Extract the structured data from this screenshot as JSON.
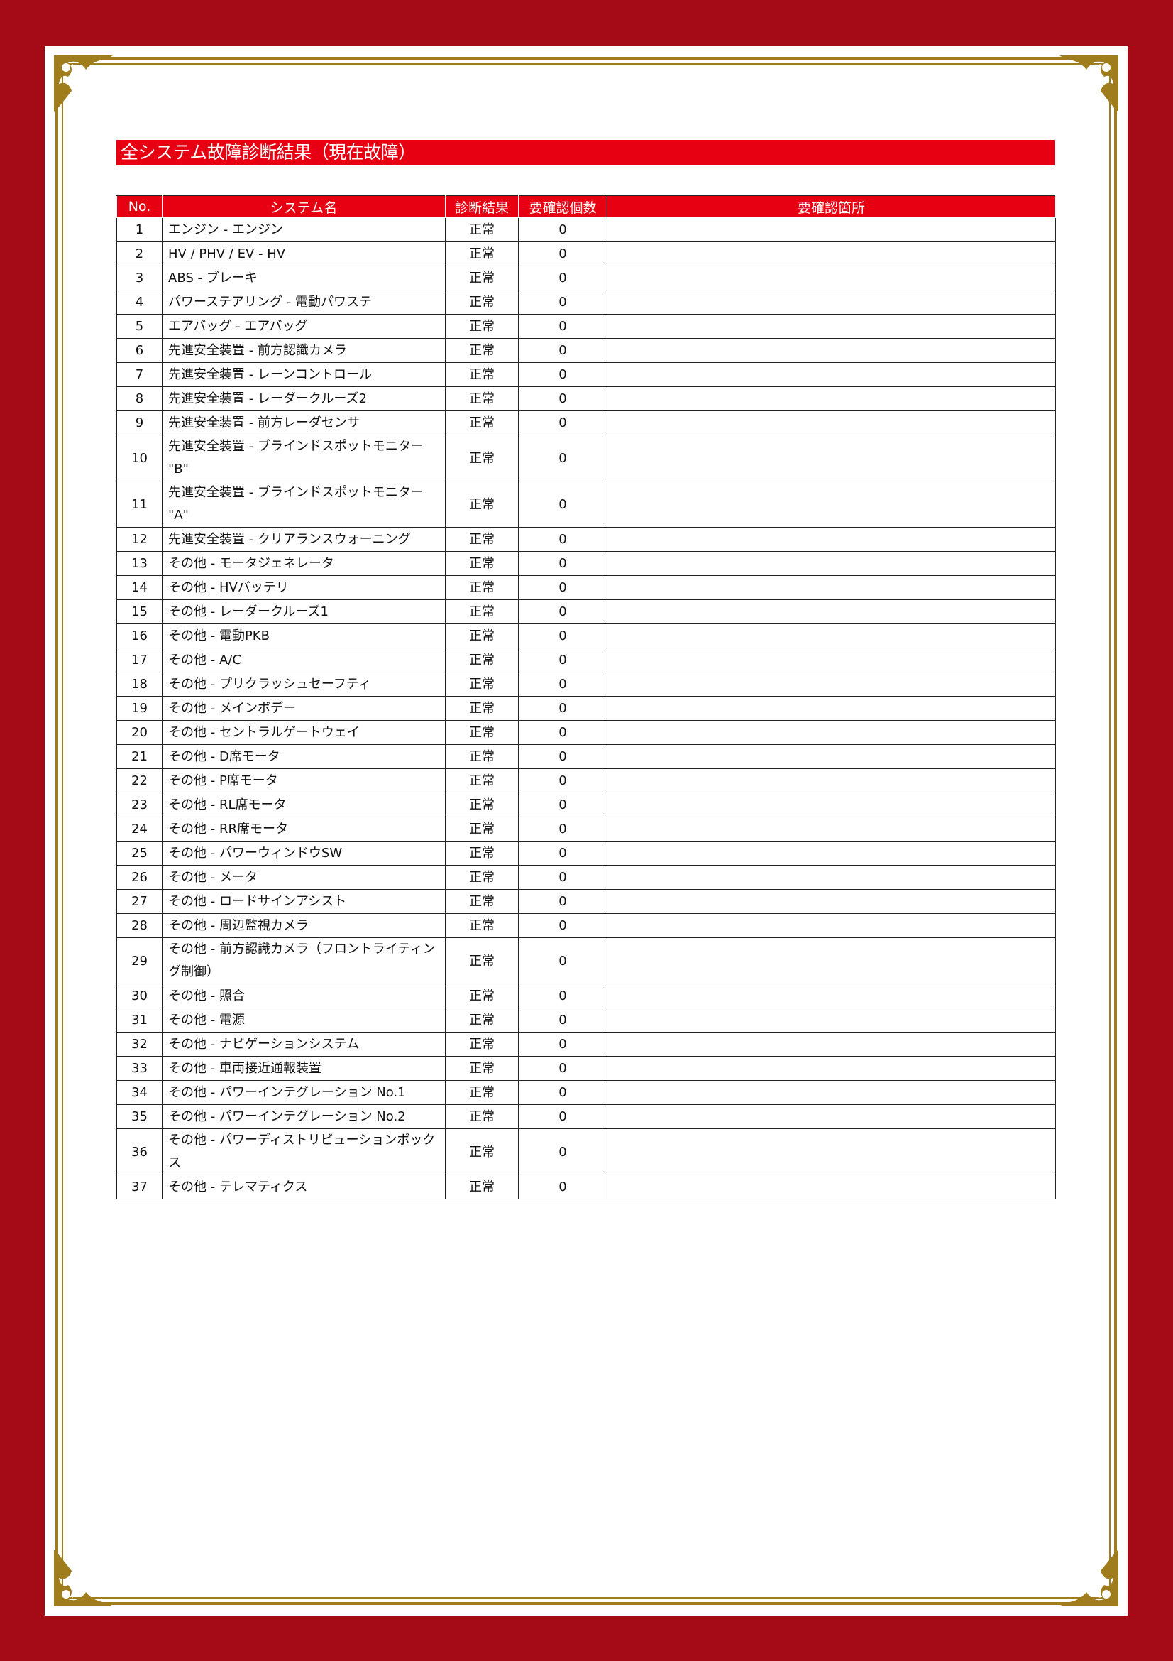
{
  "title": "全システム故障診断結果（現在故障）",
  "colors": {
    "frame": "#a50b16",
    "accent": "#e60012",
    "gold": "#a07d1c"
  },
  "table": {
    "headers": [
      "No.",
      "システム名",
      "診断結果",
      "要確認個数",
      "要確認箇所"
    ],
    "rows": [
      {
        "no": "1",
        "name": "エンジン - エンジン",
        "result": "正常",
        "count": "0",
        "location": ""
      },
      {
        "no": "2",
        "name": "HV / PHV / EV - HV",
        "result": "正常",
        "count": "0",
        "location": ""
      },
      {
        "no": "3",
        "name": "ABS - ブレーキ",
        "result": "正常",
        "count": "0",
        "location": ""
      },
      {
        "no": "4",
        "name": "パワーステアリング - 電動パワステ",
        "result": "正常",
        "count": "0",
        "location": ""
      },
      {
        "no": "5",
        "name": "エアバッグ - エアバッグ",
        "result": "正常",
        "count": "0",
        "location": ""
      },
      {
        "no": "6",
        "name": "先進安全装置 - 前方認識カメラ",
        "result": "正常",
        "count": "0",
        "location": ""
      },
      {
        "no": "7",
        "name": "先進安全装置 - レーンコントロール",
        "result": "正常",
        "count": "0",
        "location": ""
      },
      {
        "no": "8",
        "name": "先進安全装置 - レーダークルーズ2",
        "result": "正常",
        "count": "0",
        "location": ""
      },
      {
        "no": "9",
        "name": "先進安全装置 - 前方レーダセンサ",
        "result": "正常",
        "count": "0",
        "location": ""
      },
      {
        "no": "10",
        "name": "先進安全装置 - ブラインドスポットモニター \"B\"",
        "result": "正常",
        "count": "0",
        "location": ""
      },
      {
        "no": "11",
        "name": "先進安全装置 - ブラインドスポットモニター \"A\"",
        "result": "正常",
        "count": "0",
        "location": ""
      },
      {
        "no": "12",
        "name": "先進安全装置 - クリアランスウォーニング",
        "result": "正常",
        "count": "0",
        "location": ""
      },
      {
        "no": "13",
        "name": "その他 - モータジェネレータ",
        "result": "正常",
        "count": "0",
        "location": ""
      },
      {
        "no": "14",
        "name": "その他 - HVバッテリ",
        "result": "正常",
        "count": "0",
        "location": ""
      },
      {
        "no": "15",
        "name": "その他 - レーダークルーズ1",
        "result": "正常",
        "count": "0",
        "location": ""
      },
      {
        "no": "16",
        "name": "その他 - 電動PKB",
        "result": "正常",
        "count": "0",
        "location": ""
      },
      {
        "no": "17",
        "name": "その他 - A/C",
        "result": "正常",
        "count": "0",
        "location": ""
      },
      {
        "no": "18",
        "name": "その他 - プリクラッシュセーフティ",
        "result": "正常",
        "count": "0",
        "location": ""
      },
      {
        "no": "19",
        "name": "その他 - メインボデー",
        "result": "正常",
        "count": "0",
        "location": ""
      },
      {
        "no": "20",
        "name": "その他 - セントラルゲートウェイ",
        "result": "正常",
        "count": "0",
        "location": ""
      },
      {
        "no": "21",
        "name": "その他 - D席モータ",
        "result": "正常",
        "count": "0",
        "location": ""
      },
      {
        "no": "22",
        "name": "その他 - P席モータ",
        "result": "正常",
        "count": "0",
        "location": ""
      },
      {
        "no": "23",
        "name": "その他 - RL席モータ",
        "result": "正常",
        "count": "0",
        "location": ""
      },
      {
        "no": "24",
        "name": "その他 - RR席モータ",
        "result": "正常",
        "count": "0",
        "location": ""
      },
      {
        "no": "25",
        "name": "その他 - パワーウィンドウSW",
        "result": "正常",
        "count": "0",
        "location": ""
      },
      {
        "no": "26",
        "name": "その他 - メータ",
        "result": "正常",
        "count": "0",
        "location": ""
      },
      {
        "no": "27",
        "name": "その他 - ロードサインアシスト",
        "result": "正常",
        "count": "0",
        "location": ""
      },
      {
        "no": "28",
        "name": "その他 - 周辺監視カメラ",
        "result": "正常",
        "count": "0",
        "location": ""
      },
      {
        "no": "29",
        "name": "その他 - 前方認識カメラ（フロントライティング制御）",
        "result": "正常",
        "count": "0",
        "location": ""
      },
      {
        "no": "30",
        "name": "その他 - 照合",
        "result": "正常",
        "count": "0",
        "location": ""
      },
      {
        "no": "31",
        "name": "その他 - 電源",
        "result": "正常",
        "count": "0",
        "location": ""
      },
      {
        "no": "32",
        "name": "その他 - ナビゲーションシステム",
        "result": "正常",
        "count": "0",
        "location": ""
      },
      {
        "no": "33",
        "name": "その他 - 車両接近通報装置",
        "result": "正常",
        "count": "0",
        "location": ""
      },
      {
        "no": "34",
        "name": "その他 - パワーインテグレーション No.1",
        "result": "正常",
        "count": "0",
        "location": ""
      },
      {
        "no": "35",
        "name": "その他 - パワーインテグレーション No.2",
        "result": "正常",
        "count": "0",
        "location": ""
      },
      {
        "no": "36",
        "name": "その他 - パワーディストリビューションボックス",
        "result": "正常",
        "count": "0",
        "location": ""
      },
      {
        "no": "37",
        "name": "その他 - テレマティクス",
        "result": "正常",
        "count": "0",
        "location": ""
      }
    ]
  }
}
